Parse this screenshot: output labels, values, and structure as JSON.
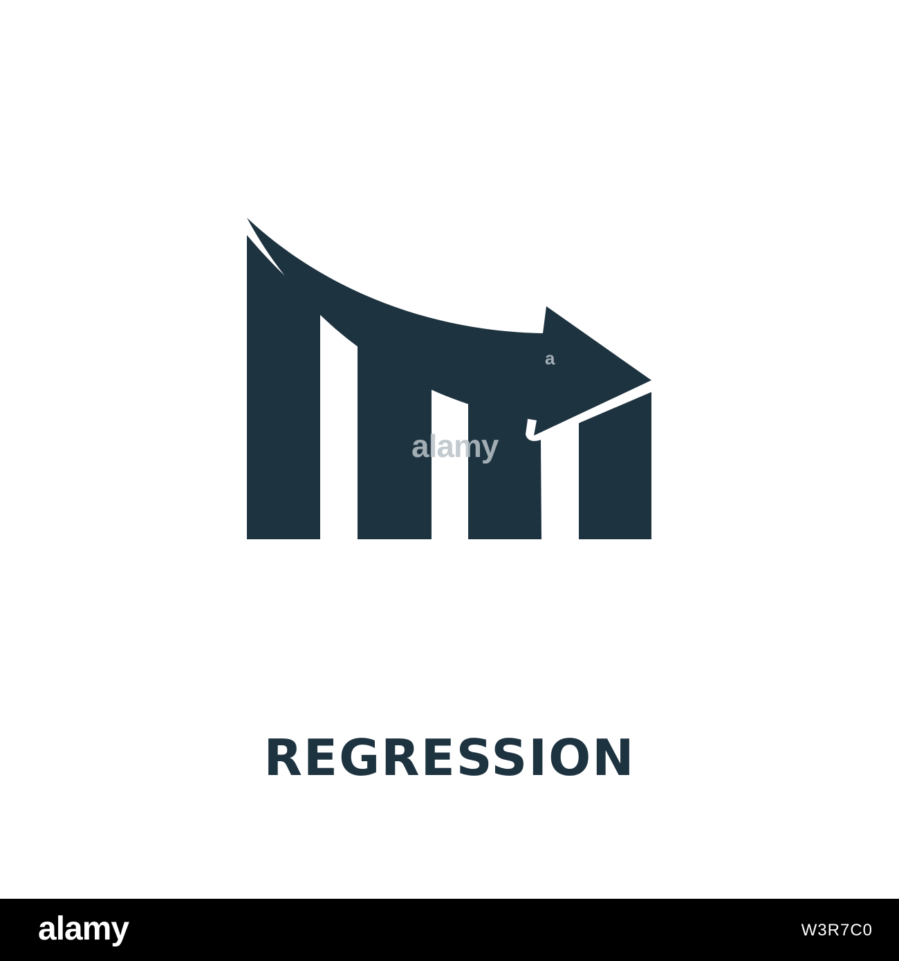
{
  "icon": {
    "name": "regression-chart-icon",
    "color": "#1e3340"
  },
  "title": {
    "text": "REGRESSION",
    "color": "#1e3340"
  },
  "watermark": {
    "small": "a",
    "large": "alamy"
  },
  "footer": {
    "logo": "alamy",
    "image_id": "W3R7C0",
    "background": "#000000",
    "text_color": "#ffffff"
  }
}
